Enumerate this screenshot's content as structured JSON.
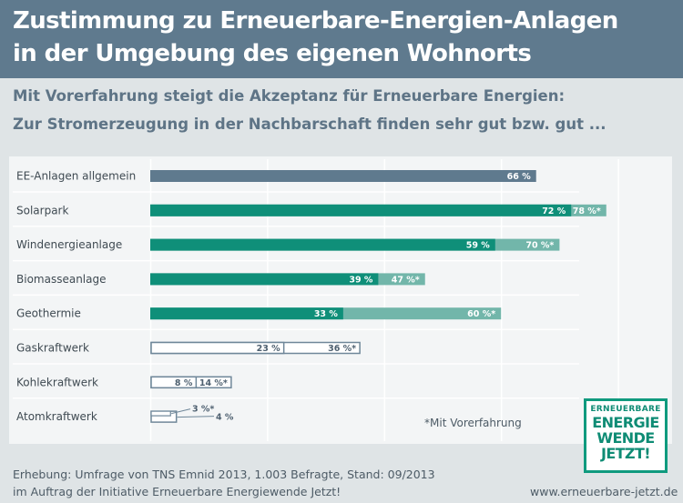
{
  "title": {
    "line1": "Zustimmung zu Erneuerbare-Energien-Anlagen",
    "line2": "in der Umgebung des eigenen Wohnorts"
  },
  "subtitle": {
    "line1": "Mit Vorerfahrung steigt die Akzeptanz für Erneuerbare Energien:",
    "line2": "Zur Stromerzeugung in der Nachbarschaft finden sehr gut bzw. gut ..."
  },
  "note": "*Mit Vorerfahrung",
  "footer": {
    "source_line1": "Erhebung: Umfrage von TNS Emnid 2013, 1.003 Befragte, Stand: 09/2013",
    "source_line2": "im Auftrag der Initiative Erneuerbare Energiewende Jetzt!",
    "url": "www.erneuerbare-jetzt.de"
  },
  "logo": {
    "line1": "ERNEUERBARE",
    "line2": "ENERGIE",
    "line3": "WENDE",
    "line4": "JETZT!"
  },
  "colors": {
    "header_bg": "#5f7a8e",
    "general": "#5f7a8e",
    "renewable_dark": "#0f8f79",
    "renewable_light": "#72b6aa",
    "fossil_outline": "#6f8799",
    "grid": "#ffffff"
  },
  "chart_data": {
    "type": "bar",
    "orientation": "horizontal",
    "xlim": [
      0,
      100
    ],
    "grid": true,
    "categories": [
      "EE-Anlagen allgemein",
      "Solarpark",
      "Windenergieanlage",
      "Biomasseanlage",
      "Geothermie",
      "Gaskraftwerk",
      "Kohlekraftwerk",
      "Atomkraftwerk"
    ],
    "series": [
      {
        "values": [
          66,
          72,
          59,
          39,
          33,
          23,
          8,
          4
        ],
        "labels": [
          "66 %",
          "72 %",
          "59 %",
          "39 %",
          "33 %",
          "23 %",
          "8 %",
          "4 %"
        ]
      },
      {
        "name": "*Mit Vorerfahrung",
        "values": [
          null,
          78,
          70,
          47,
          60,
          36,
          14,
          3
        ],
        "labels": [
          null,
          "78 %*",
          "70 %*",
          "47 %*",
          "60 %*",
          "36 %*",
          "14 %*",
          "3 %*"
        ]
      }
    ],
    "styles": [
      "general",
      "renewable",
      "renewable",
      "renewable",
      "renewable",
      "fossil",
      "fossil",
      "fossil"
    ]
  }
}
